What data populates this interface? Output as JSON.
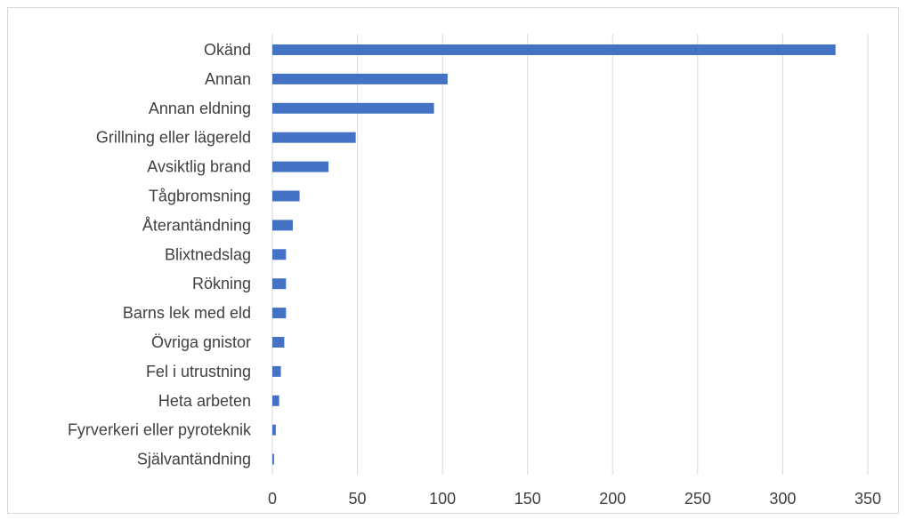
{
  "chart_data": {
    "type": "bar",
    "orientation": "horizontal",
    "title": "",
    "xlabel": "",
    "ylabel": "",
    "xlim": [
      0,
      350
    ],
    "x_ticks": [
      "0",
      "50",
      "100",
      "150",
      "200",
      "250",
      "300",
      "350"
    ],
    "grid": "vertical",
    "legend": "none",
    "bar_color": "#4472C4",
    "categories": [
      "Okänd",
      "Annan",
      "Annan eldning",
      "Grillning eller lägereld",
      "Avsiktlig brand",
      "Tågbromsning",
      "Återantändning",
      "Blixtnedslag",
      "Rökning",
      "Barns lek med eld",
      "Övriga gnistor",
      "Fel i utrustning",
      "Heta arbeten",
      "Fyrverkeri eller pyroteknik",
      "Självantändning"
    ],
    "values": [
      331,
      103,
      95,
      49,
      33,
      16,
      12,
      8,
      8,
      8,
      7,
      5,
      4,
      2,
      1
    ]
  }
}
